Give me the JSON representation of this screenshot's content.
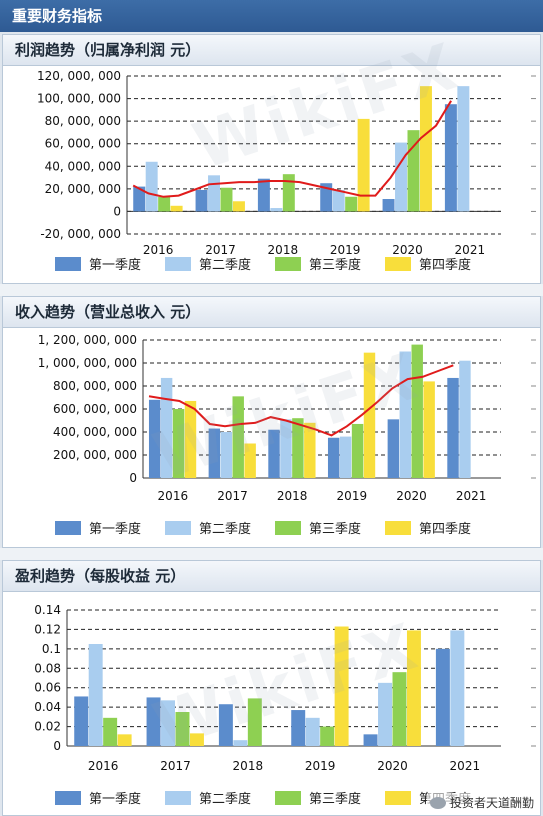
{
  "header": {
    "title": "重要财务指标"
  },
  "colors": {
    "q1": "#5b8ccc",
    "q2": "#a9cdef",
    "q3": "#8ed052",
    "q4": "#f8de3b",
    "trend": "#e01b1b",
    "header_bg": "#3a69a2"
  },
  "legend": [
    "第一季度",
    "第二季度",
    "第三季度",
    "第四季度"
  ],
  "watermark": {
    "text": "WikiFX",
    "logo_icon": "wikifx-logo-icon"
  },
  "footer": {
    "wechat_icon": "wechat-icon",
    "account": "投资者天道酬勤"
  },
  "chart_data": [
    {
      "type": "bar",
      "title": "利润趋势（归属净利润 元）",
      "categories": [
        "2016",
        "2017",
        "2018",
        "2019",
        "2020",
        "2021"
      ],
      "ytick_labels": [
        "-20, 000, 000",
        "0",
        "20, 000, 000",
        "40, 000, 000",
        "60, 000, 000",
        "80, 000, 000",
        "100, 000, 000",
        "120, 000, 000"
      ],
      "ylim": [
        -20000000,
        120000000
      ],
      "grid": true,
      "legend_position": "bottom",
      "series": [
        {
          "name": "第一季度",
          "values": [
            22000000,
            19000000,
            29000000,
            25000000,
            11000000,
            95000000
          ]
        },
        {
          "name": "第二季度",
          "values": [
            44000000,
            32000000,
            3000000,
            19000000,
            61000000,
            111000000
          ]
        },
        {
          "name": "第三季度",
          "values": [
            13000000,
            21000000,
            33000000,
            13000000,
            72000000,
            null
          ]
        },
        {
          "name": "第四季度",
          "values": [
            5000000,
            9000000,
            null,
            82000000,
            111000000,
            null
          ]
        }
      ],
      "trend": [
        23000000,
        16000000,
        13000000,
        14000000,
        19000000,
        24000000,
        25000000,
        26000000,
        26000000,
        27000000,
        27000000,
        26000000,
        23000000,
        20000000,
        17000000,
        14000000,
        14000000,
        30000000,
        50000000,
        65000000,
        76000000,
        98000000
      ]
    },
    {
      "type": "bar",
      "title": "收入趋势（营业总收入 元）",
      "categories": [
        "2016",
        "2017",
        "2018",
        "2019",
        "2020",
        "2021"
      ],
      "ytick_labels": [
        "0",
        "200, 000, 000",
        "400, 000, 000",
        "600, 000, 000",
        "800, 000, 000",
        "1, 000, 000, 000",
        "1, 200, 000, 000"
      ],
      "ylim": [
        0,
        1200000000
      ],
      "grid": true,
      "legend_position": "bottom",
      "series": [
        {
          "name": "第一季度",
          "values": [
            680000000,
            430000000,
            420000000,
            350000000,
            510000000,
            870000000
          ]
        },
        {
          "name": "第二季度",
          "values": [
            870000000,
            400000000,
            510000000,
            360000000,
            1100000000,
            1020000000
          ]
        },
        {
          "name": "第三季度",
          "values": [
            600000000,
            710000000,
            520000000,
            470000000,
            1160000000,
            null
          ]
        },
        {
          "name": "第四季度",
          "values": [
            670000000,
            300000000,
            480000000,
            1090000000,
            840000000,
            null
          ]
        }
      ],
      "trend": [
        710000000,
        690000000,
        670000000,
        600000000,
        470000000,
        450000000,
        470000000,
        480000000,
        530000000,
        500000000,
        460000000,
        420000000,
        370000000,
        450000000,
        550000000,
        660000000,
        780000000,
        860000000,
        880000000,
        930000000,
        980000000
      ]
    },
    {
      "type": "bar",
      "title": "盈利趋势（每股收益 元）",
      "categories": [
        "2016",
        "2017",
        "2018",
        "2019",
        "2020",
        "2021"
      ],
      "ytick_labels": [
        "0",
        "0.02",
        "0.04",
        "0.06",
        "0.08",
        "0.1",
        "0.12",
        "0.14"
      ],
      "ylim": [
        0,
        0.14
      ],
      "grid": true,
      "legend_position": "bottom",
      "series": [
        {
          "name": "第一季度",
          "values": [
            0.051,
            0.05,
            0.043,
            0.037,
            0.012,
            0.1
          ]
        },
        {
          "name": "第二季度",
          "values": [
            0.105,
            0.047,
            0.006,
            0.029,
            0.065,
            0.119
          ]
        },
        {
          "name": "第三季度",
          "values": [
            0.029,
            0.035,
            0.049,
            0.02,
            0.076,
            null
          ]
        },
        {
          "name": "第四季度",
          "values": [
            0.012,
            0.013,
            null,
            0.123,
            0.119,
            null
          ]
        }
      ]
    }
  ]
}
